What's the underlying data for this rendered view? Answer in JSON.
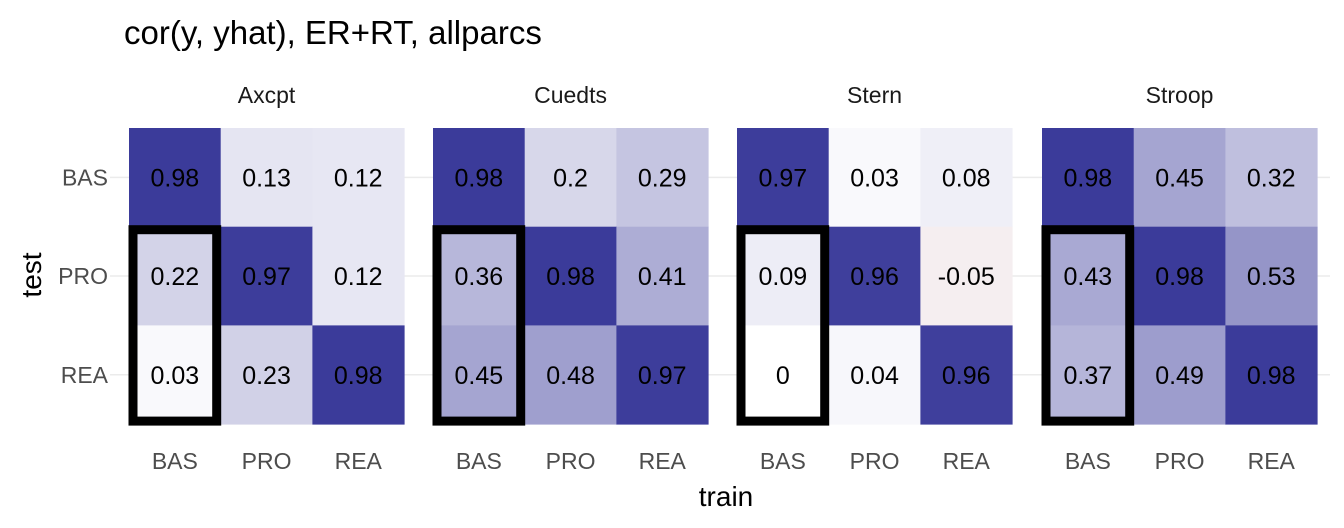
{
  "chart_data": {
    "type": "heatmap",
    "title": "cor(y, yhat), ER+RT, allparcs",
    "xlabel": "train",
    "ylabel": "test",
    "x_categories": [
      "BAS",
      "PRO",
      "REA"
    ],
    "y_categories": [
      "BAS",
      "PRO",
      "REA"
    ],
    "color_scale": {
      "low": "#f5eef0",
      "mid": "#ffffff",
      "high": "#3b3b9a",
      "limits": [
        -0.05,
        0.98
      ]
    },
    "highlight": {
      "train": "BAS",
      "test": [
        "PRO",
        "REA"
      ],
      "color": "#000000"
    },
    "facets": [
      {
        "name": "Axcpt",
        "values": [
          [
            0.98,
            0.13,
            0.12
          ],
          [
            0.22,
            0.97,
            0.12
          ],
          [
            0.03,
            0.23,
            0.98
          ]
        ],
        "labels": [
          [
            "0.98",
            "0.13",
            "0.12"
          ],
          [
            "0.22",
            "0.97",
            "0.12"
          ],
          [
            "0.03",
            "0.23",
            "0.98"
          ]
        ]
      },
      {
        "name": "Cuedts",
        "values": [
          [
            0.98,
            0.2,
            0.29
          ],
          [
            0.36,
            0.98,
            0.41
          ],
          [
            0.45,
            0.48,
            0.97
          ]
        ],
        "labels": [
          [
            "0.98",
            "0.2",
            "0.29"
          ],
          [
            "0.36",
            "0.98",
            "0.41"
          ],
          [
            "0.45",
            "0.48",
            "0.97"
          ]
        ]
      },
      {
        "name": "Stern",
        "values": [
          [
            0.97,
            0.03,
            0.08
          ],
          [
            0.09,
            0.96,
            -0.05
          ],
          [
            0,
            0.04,
            0.96
          ]
        ],
        "labels": [
          [
            "0.97",
            "0.03",
            "0.08"
          ],
          [
            "0.09",
            "0.96",
            "-0.05"
          ],
          [
            "0",
            "0.04",
            "0.96"
          ]
        ]
      },
      {
        "name": "Stroop",
        "values": [
          [
            0.98,
            0.45,
            0.32
          ],
          [
            0.43,
            0.98,
            0.53
          ],
          [
            0.37,
            0.49,
            0.98
          ]
        ],
        "labels": [
          [
            "0.98",
            "0.45",
            "0.32"
          ],
          [
            "0.43",
            "0.98",
            "0.53"
          ],
          [
            "0.37",
            "0.49",
            "0.98"
          ]
        ]
      }
    ]
  }
}
